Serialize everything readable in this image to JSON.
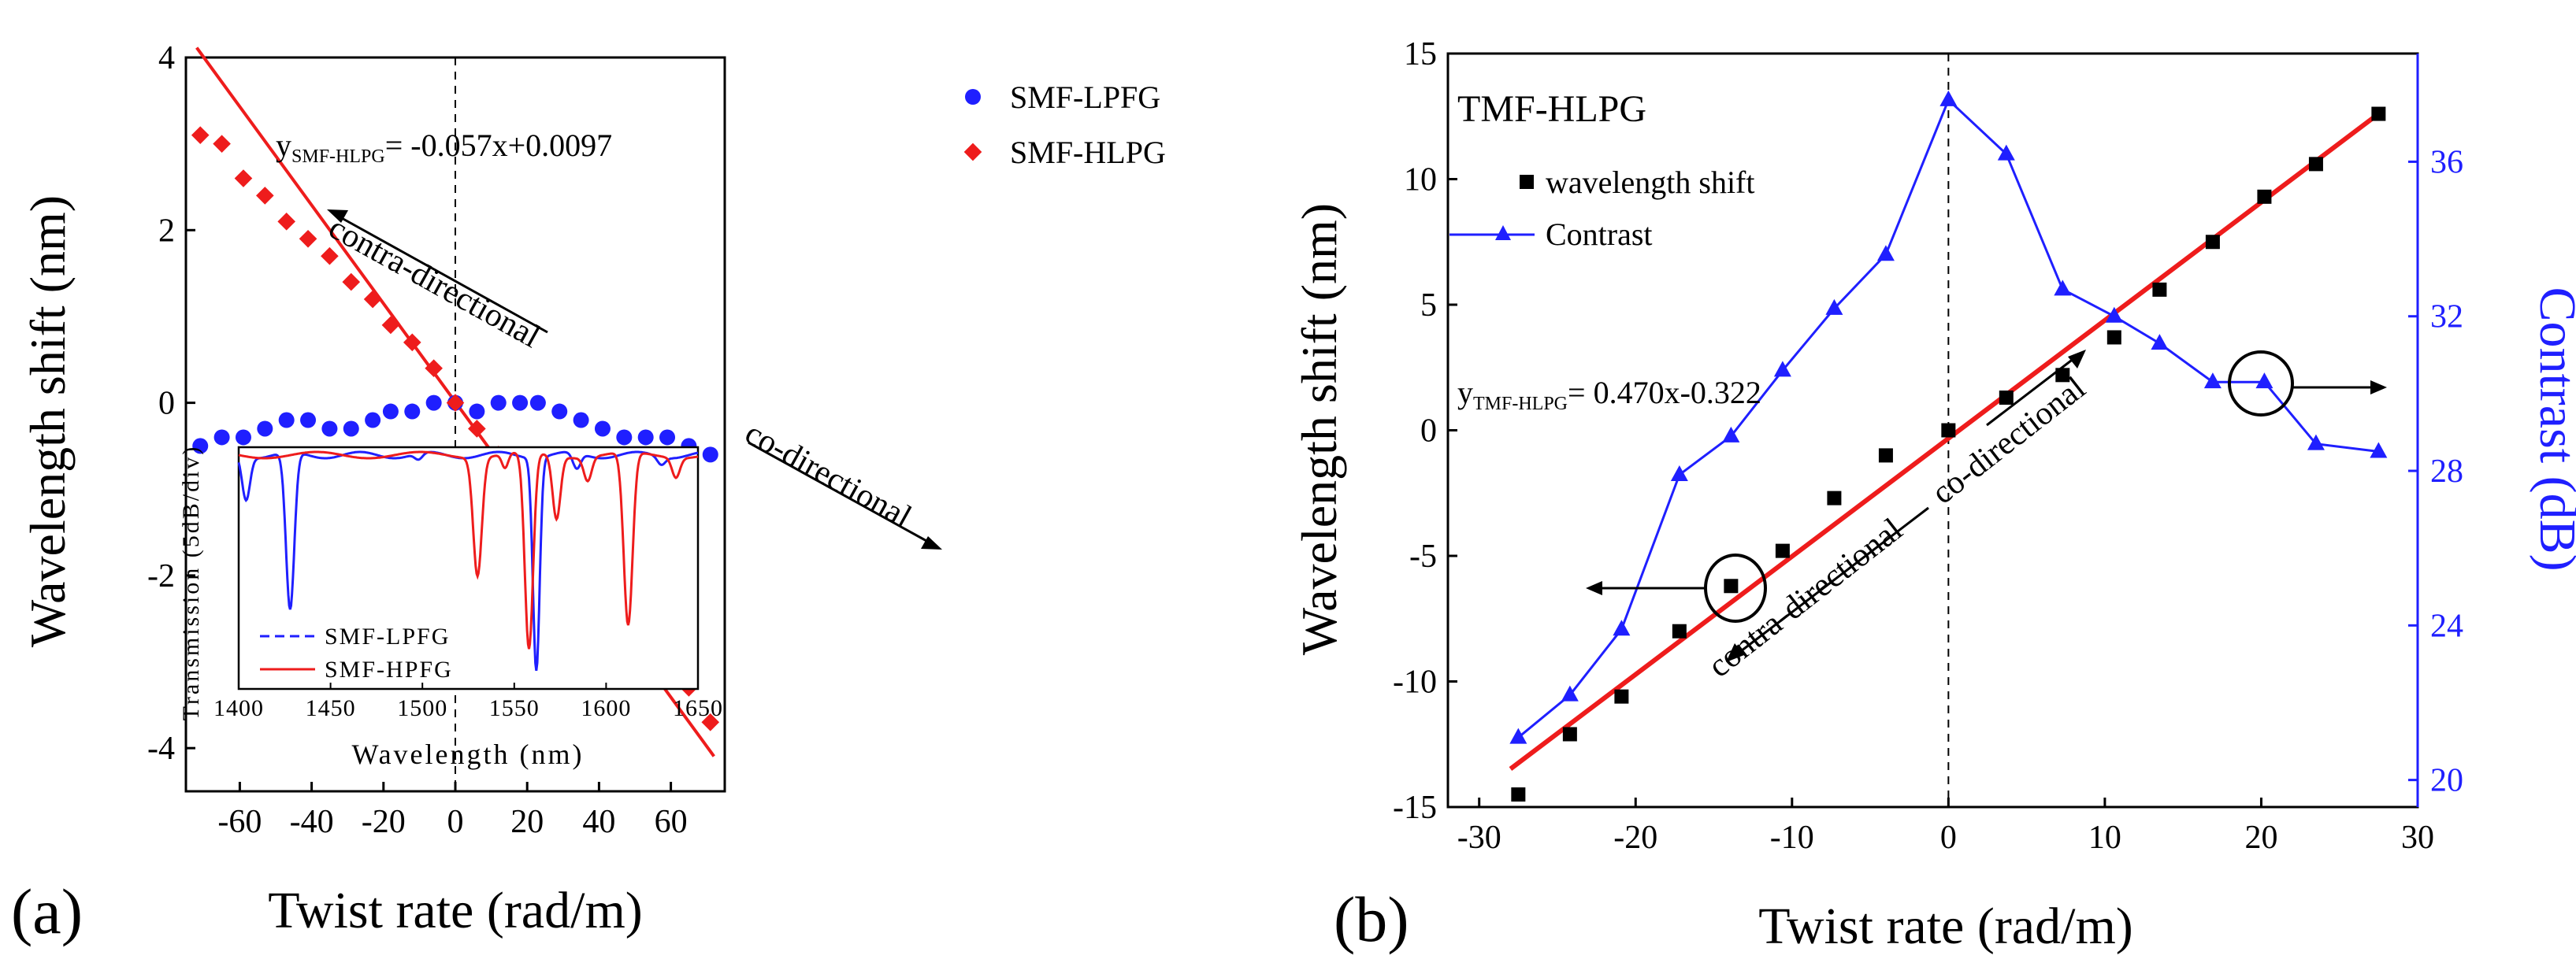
{
  "chart_data": [
    {
      "panel_label": "(a)",
      "type": "scatter",
      "xlabel": "Twist rate (rad/m)",
      "ylabel": "Wavelength shift (nm)",
      "xlim": [
        -75,
        75
      ],
      "ylim": [
        -4.5,
        4
      ],
      "x_ticks": [
        -60,
        -40,
        -20,
        0,
        20,
        40,
        60
      ],
      "y_ticks": [
        -4,
        -2,
        0,
        2,
        4
      ],
      "legend_position": "top-right",
      "series": [
        {
          "name": "SMF-LPFG",
          "marker": "circle",
          "color": "#1f1fff",
          "x": [
            -71,
            -65,
            -59,
            -53,
            -47,
            -41,
            -35,
            -29,
            -23,
            -18,
            -12,
            -6,
            0,
            6,
            12,
            18,
            23,
            29,
            35,
            41,
            47,
            53,
            59,
            65,
            71
          ],
          "y": [
            -0.5,
            -0.4,
            -0.4,
            -0.3,
            -0.2,
            -0.2,
            -0.3,
            -0.3,
            -0.2,
            -0.1,
            -0.1,
            0.0,
            0.0,
            -0.1,
            0.0,
            0.0,
            0.0,
            -0.1,
            -0.2,
            -0.3,
            -0.4,
            -0.4,
            -0.4,
            -0.5,
            -0.6
          ]
        },
        {
          "name": "SMF-HLPG",
          "marker": "diamond",
          "color": "#ee1c1c",
          "x": [
            -71,
            -65,
            -59,
            -53,
            -47,
            -41,
            -35,
            -29,
            -23,
            -18,
            -12,
            -6,
            0,
            6,
            12,
            18,
            23,
            29,
            35,
            41,
            47,
            53,
            59,
            65,
            71
          ],
          "y": [
            3.1,
            3.0,
            2.6,
            2.4,
            2.1,
            1.9,
            1.7,
            1.4,
            1.2,
            0.9,
            0.7,
            0.4,
            0.0,
            -0.3,
            -0.6,
            -0.8,
            -1.2,
            -1.5,
            -1.8,
            -2.1,
            -2.4,
            -2.8,
            -3.0,
            -3.3,
            -3.7
          ]
        }
      ],
      "fit": {
        "slope": -0.057,
        "intercept": 0.0097,
        "x_range": [
          -72,
          72
        ],
        "color": "#ee1c1c"
      },
      "annotations": {
        "equation_prefix": "y",
        "equation_subscript": "SMF-HLPG",
        "equation_rest": "= -0.057x+0.0097",
        "contra": "contra-directional",
        "co": "co-directional"
      },
      "inset": {
        "xlabel": "Wavelength (nm)",
        "ylabel": "Transmission (5dB/div)",
        "xlim": [
          1400,
          1650
        ],
        "x_ticks": [
          1400,
          1450,
          1500,
          1550,
          1600,
          1650
        ],
        "series": [
          {
            "name": "SMF-LPFG",
            "color": "#1f1fff",
            "style": "dashed"
          },
          {
            "name": "SMF-HPFG",
            "color": "#ee1c1c",
            "style": "solid"
          }
        ]
      }
    },
    {
      "panel_label": "(b)",
      "type": "scatter",
      "title": "TMF-HLPG",
      "xlabel": "Twist rate (rad/m)",
      "ylabel": "Wavelength shift (nm)",
      "y2label": "Contrast (dB)",
      "xlim": [
        -32,
        30
      ],
      "ylim": [
        -15,
        15
      ],
      "y2lim": [
        19.3,
        38.8
      ],
      "x_ticks": [
        -30,
        -20,
        -10,
        0,
        10,
        20,
        30
      ],
      "y_ticks": [
        -15,
        -10,
        -5,
        0,
        5,
        10,
        15
      ],
      "y2_ticks": [
        20,
        24,
        28,
        32,
        36
      ],
      "legend_position": "top-left",
      "series": [
        {
          "name": "wavelength shift",
          "marker": "square",
          "color": "#000000",
          "axis": "left",
          "x": [
            -27.5,
            -24.2,
            -20.9,
            -17.2,
            -13.9,
            -10.6,
            -7.3,
            -4.0,
            0,
            3.7,
            7.3,
            10.6,
            13.5,
            16.9,
            20.2,
            23.5,
            27.5
          ],
          "y": [
            -14.5,
            -12.1,
            -10.6,
            -8.0,
            -6.2,
            -4.8,
            -2.7,
            -1.0,
            0.0,
            1.3,
            2.2,
            3.7,
            5.6,
            7.5,
            9.3,
            10.6,
            12.6
          ]
        },
        {
          "name": "Contrast",
          "marker": "triangle",
          "color": "#1f1fff",
          "axis": "right",
          "x": [
            -27.5,
            -24.2,
            -20.9,
            -17.2,
            -13.9,
            -10.6,
            -7.3,
            -4.0,
            0,
            3.7,
            7.3,
            10.6,
            13.5,
            16.9,
            20.2,
            23.5,
            27.5
          ],
          "y": [
            21.1,
            22.2,
            23.9,
            27.9,
            28.9,
            30.6,
            32.2,
            33.6,
            37.6,
            36.2,
            32.7,
            32.0,
            31.3,
            30.3,
            30.3,
            28.7,
            28.5
          ]
        }
      ],
      "fit": {
        "slope": 0.47,
        "intercept": -0.322,
        "x_range": [
          -28,
          27.7
        ],
        "color": "#ee1c1c"
      },
      "annotations": {
        "equation_prefix": "y",
        "equation_subscript": "TMF-HLPG",
        "equation_rest": "= 0.470x-0.322",
        "contra": "contra-directional",
        "co": "co-directional"
      }
    }
  ]
}
